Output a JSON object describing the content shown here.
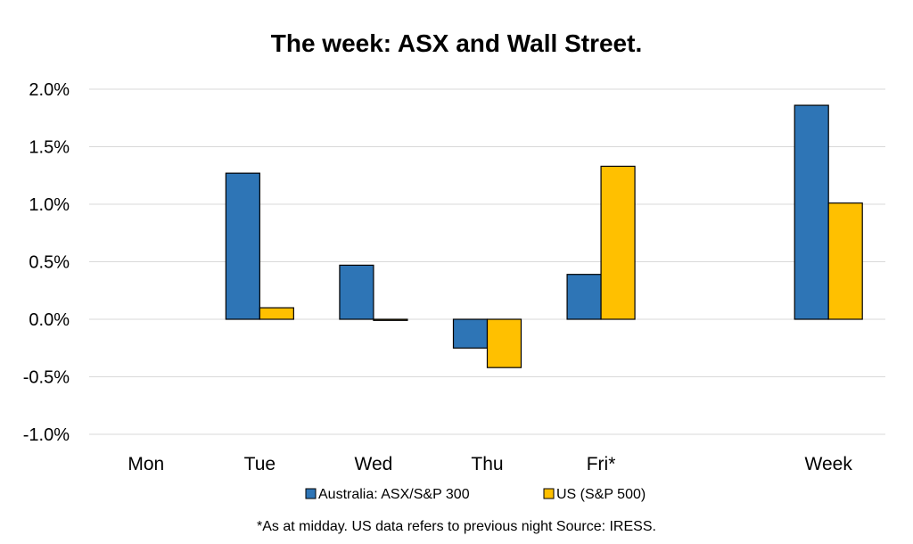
{
  "chart_data": {
    "type": "bar",
    "title": "The week:  ASX and Wall Street.",
    "categories": [
      "Mon",
      "Tue",
      "Wed",
      "Thu",
      "Fri*",
      "",
      "Week"
    ],
    "series": [
      {
        "name": "Australia: ASX/S&P 300",
        "color": "#2E75B6",
        "values": [
          null,
          1.27,
          0.47,
          -0.25,
          0.39,
          null,
          1.86
        ]
      },
      {
        "name": "US (S&P 500)",
        "color": "#FFC000",
        "values": [
          null,
          0.1,
          -0.01,
          -0.42,
          1.33,
          null,
          1.01
        ]
      }
    ],
    "ylim": [
      -1.0,
      2.0
    ],
    "yticks": [
      2.0,
      1.5,
      1.0,
      0.5,
      0.0,
      -0.5,
      -1.0
    ],
    "ytick_labels": [
      "2.0%",
      "1.5%",
      "1.0%",
      "0.5%",
      "0.0%",
      "-0.5%",
      "-1.0%"
    ],
    "grid": true,
    "legend_position": "bottom",
    "note": "*As at midday. US data refers to previous night  Source:  IRESS."
  }
}
